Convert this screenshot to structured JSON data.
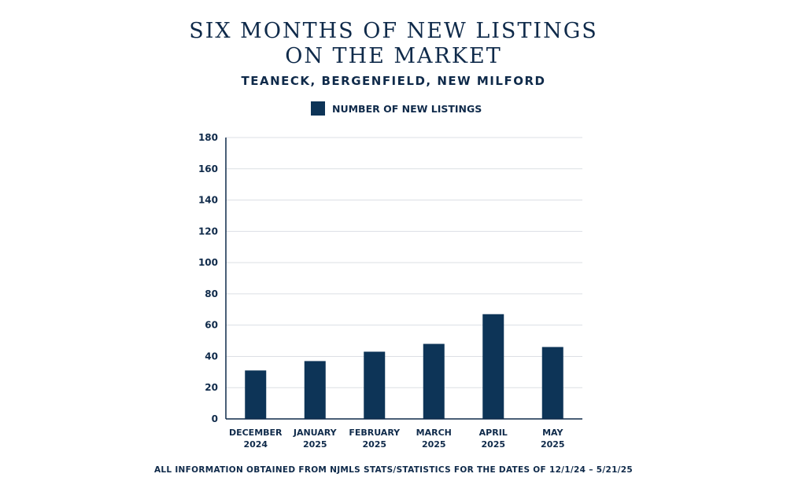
{
  "chart_data": {
    "type": "bar",
    "title_lines": [
      "SIX MONTHS OF NEW LISTINGS",
      "ON THE MARKET"
    ],
    "subtitle": "TEANECK, BERGENFIELD, NEW MILFORD",
    "categories": [
      [
        "DECEMBER",
        "2024"
      ],
      [
        "JANUARY",
        "2025"
      ],
      [
        "FEBRUARY",
        "2025"
      ],
      [
        "MARCH",
        "2025"
      ],
      [
        "APRIL",
        "2025"
      ],
      [
        "MAY",
        "2025"
      ]
    ],
    "series": [
      {
        "name": "NUMBER OF NEW LISTINGS",
        "values": [
          31,
          37,
          43,
          48,
          67,
          46
        ],
        "color": "#0d3457"
      }
    ],
    "y_ticks": [
      "0",
      "20",
      "40",
      "60",
      "80",
      "100",
      "120",
      "140",
      "160",
      "180"
    ],
    "ylim": [
      0,
      180
    ],
    "grid": true,
    "legend_position": "top-center",
    "footnote": "ALL INFORMATION OBTAINED FROM NJMLS STATS/STATISTICS FOR THE DATES OF 12/1/24 – 5/21/25"
  }
}
